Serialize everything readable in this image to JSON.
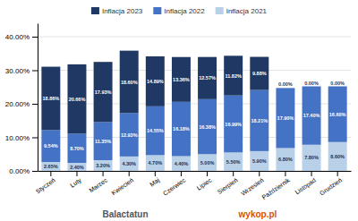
{
  "chart_data": {
    "type": "bar",
    "stacked": true,
    "categories": [
      "Styczeń",
      "Luty",
      "Marzec",
      "Kwiecień",
      "Maj",
      "Czerwiec",
      "Lipiec",
      "Sierpień",
      "Wrzesień",
      "Październik",
      "Listopad",
      "Grudzień"
    ],
    "series": [
      {
        "name": "Inflacja 2021",
        "color": "#b8d0e8",
        "values": [
          2.65,
          2.4,
          3.2,
          4.3,
          4.7,
          4.4,
          5.0,
          5.5,
          5.9,
          6.8,
          7.8,
          8.6
        ],
        "value_labels": [
          "2.65%",
          "2.40%",
          "3.20%",
          "4.30%",
          "4.70%",
          "4.40%",
          "5.00%",
          "5.50%",
          "5.90%",
          "6.80%",
          "7.80%",
          "8.60%"
        ]
      },
      {
        "name": "Inflacja 2022",
        "color": "#4472c4",
        "values": [
          9.54,
          8.7,
          11.35,
          12.93,
          14.55,
          16.18,
          16.38,
          16.99,
          18.21,
          17.9,
          17.4,
          16.6
        ],
        "value_labels": [
          "9.54%",
          "8.70%",
          "11.35%",
          "12.93%",
          "14.55%",
          "16.18%",
          "16.38%",
          "16.99%",
          "18.21%",
          "17.90%",
          "17.40%",
          "16.60%"
        ]
      },
      {
        "name": "Inflacja 2023",
        "color": "#1f3864",
        "values": [
          18.86,
          20.66,
          17.93,
          18.6,
          14.89,
          13.36,
          12.57,
          11.82,
          9.88,
          0.0,
          0.0,
          0.0
        ],
        "value_labels": [
          "18.86%",
          "20.66%",
          "17.93%",
          "18.60%",
          "14.89%",
          "13.36%",
          "12.57%",
          "11.82%",
          "9.88%",
          "0.00%",
          "0.00%",
          "0.00%"
        ]
      }
    ],
    "ylim": [
      0,
      44
    ],
    "yticks": [
      {
        "value": 0,
        "label": "0.00%"
      },
      {
        "value": 10,
        "label": "10.00%"
      },
      {
        "value": 20,
        "label": "20.00%"
      },
      {
        "value": 30,
        "label": "30.00%"
      },
      {
        "value": 40,
        "label": "40.00%"
      }
    ],
    "grid": true,
    "data_labels": true,
    "legend": "top",
    "annotations": [
      {
        "text": "Balactatun",
        "color": "#555555"
      },
      {
        "text": "wykop.pl",
        "color": "#e05000"
      }
    ]
  }
}
